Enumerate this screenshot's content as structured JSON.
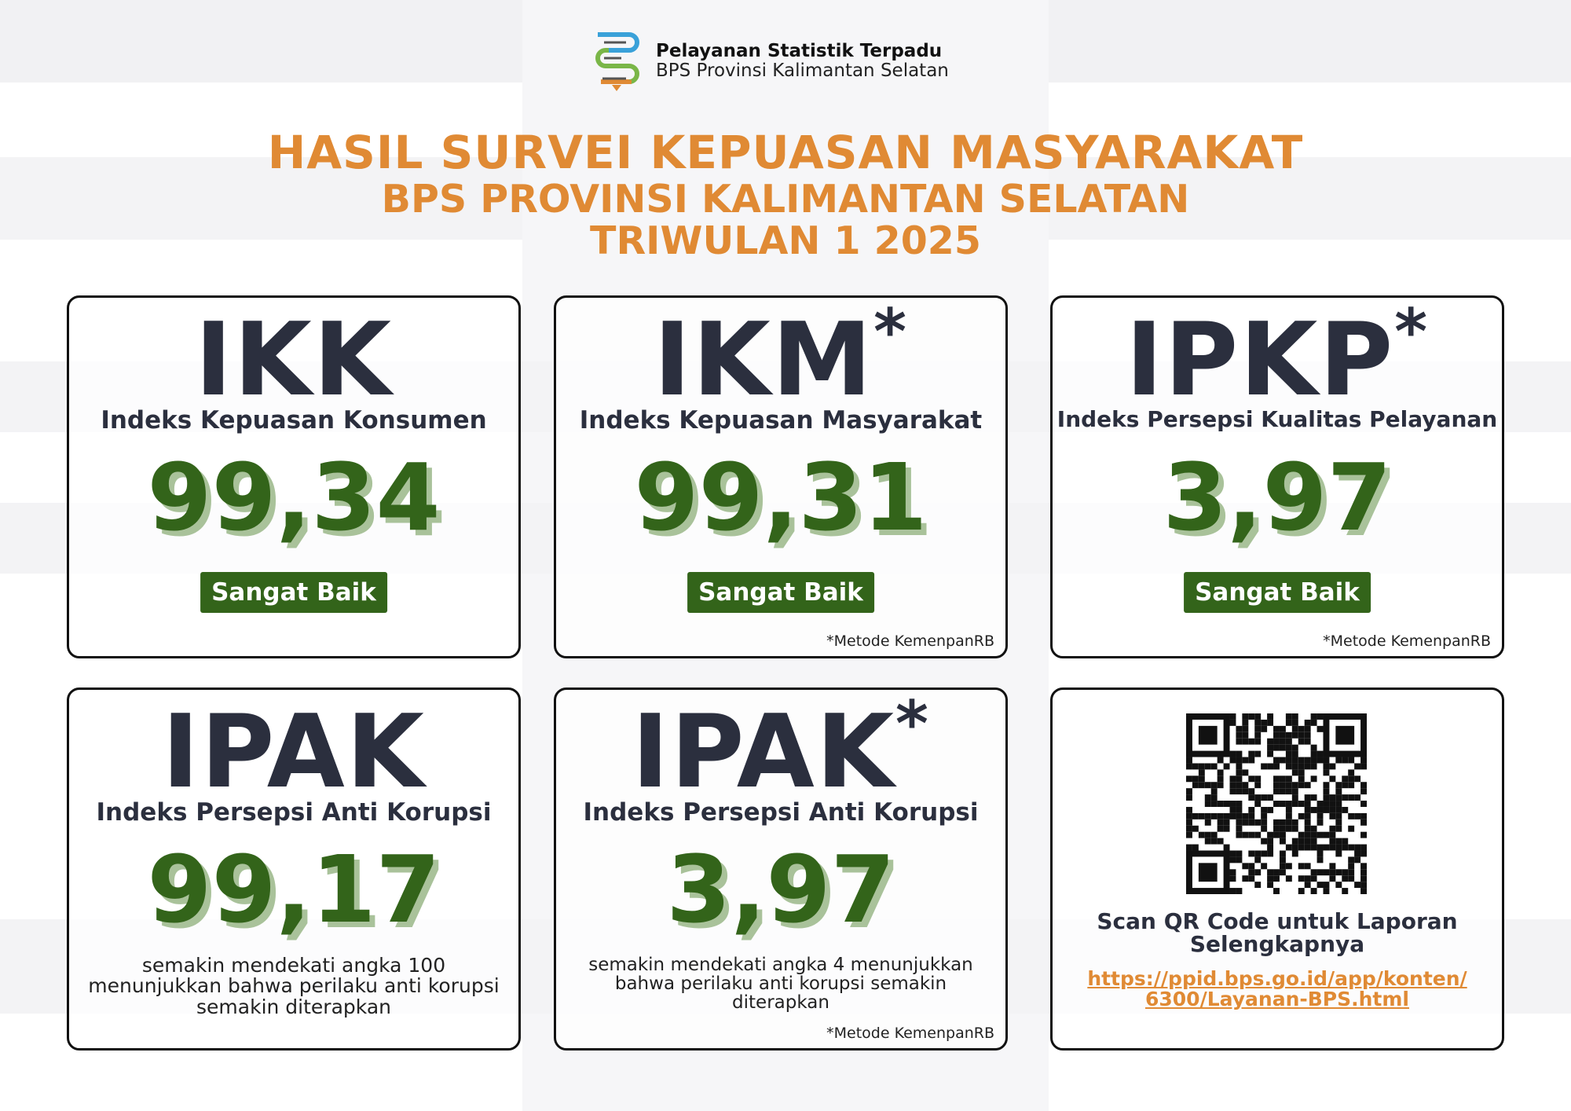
{
  "header": {
    "brand_title": "Pelayanan Statistik Terpadu",
    "brand_subtitle": "BPS Provinsi Kalimantan Selatan",
    "title": "HASIL SURVEI KEPUASAN MASYARAKAT",
    "subtitle": "BPS PROVINSI KALIMANTAN SELATAN",
    "period": "TRIWULAN 1 2025"
  },
  "colors": {
    "accent": "#e08a34",
    "value_green": "#33641a",
    "text_dark": "#2b2f3e"
  },
  "cards": [
    {
      "abbr": "IKK",
      "star": "",
      "name": "Indeks Kepuasan Konsumen",
      "value": "99,34",
      "badge": "Sangat Baik",
      "note": ""
    },
    {
      "abbr": "IKM",
      "star": "*",
      "name": "Indeks Kepuasan Masyarakat",
      "value": "99,31",
      "badge": "Sangat Baik",
      "note": "*Metode KemenpanRB"
    },
    {
      "abbr": "IPKP",
      "star": "*",
      "name": "Indeks Persepsi Kualitas Pelayanan",
      "value": "3,97",
      "badge": "Sangat Baik",
      "note": "*Metode KemenpanRB"
    },
    {
      "abbr": "IPAK",
      "star": "",
      "name": "Indeks Persepsi Anti Korupsi",
      "value": "99,17",
      "desc": "semakin mendekati angka 100 menunjukkan bahwa perilaku anti korupsi semakin diterapkan",
      "note": ""
    },
    {
      "abbr": "IPAK",
      "star": "*",
      "name": "Indeks Persepsi Anti Korupsi",
      "value": "3,97",
      "desc": "semakin mendekati angka 4 menunjukkan bahwa perilaku anti korupsi semakin diterapkan",
      "note": "*Metode KemenpanRB"
    }
  ],
  "qr": {
    "caption": "Scan QR Code untuk Laporan Selengkapnya",
    "link": "https://ppid.bps.go.id/app/konten/6300/Layanan-BPS.html"
  }
}
